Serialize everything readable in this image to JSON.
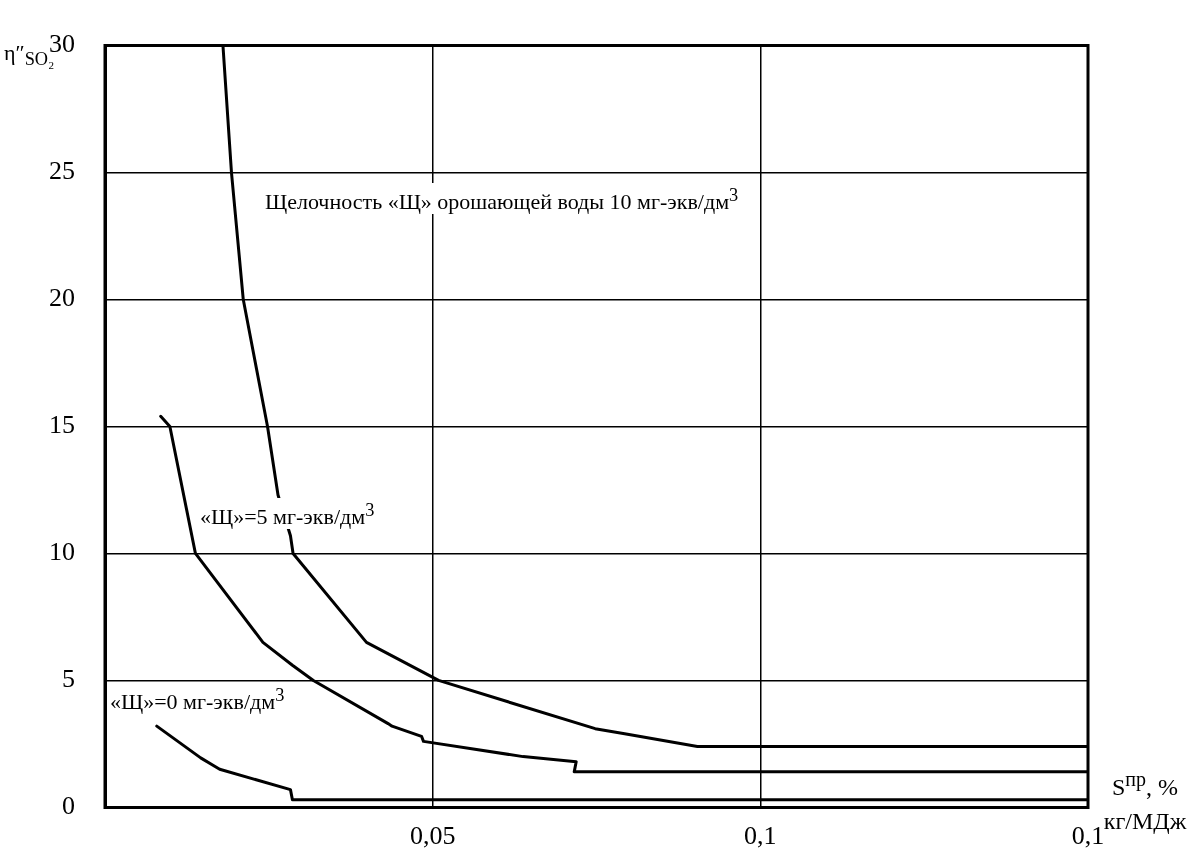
{
  "chart_data": {
    "type": "line",
    "ylabel": "η″$_{SO₂}$",
    "xlabel": "S$^{пр}$, % кг/МДж",
    "xlim": [
      0,
      0.15
    ],
    "xticks": [
      {
        "value": 0.05,
        "label": "0,05"
      },
      {
        "value": 0.1,
        "label": "0,1"
      },
      {
        "value": 0.15,
        "label": "0,1"
      }
    ],
    "ylim": [
      0,
      30
    ],
    "yticks": [
      0,
      5,
      10,
      15,
      20,
      25,
      30
    ],
    "grid": true,
    "legend": false,
    "marker": "none",
    "line_style": "solid",
    "annotations": [
      "Щелочность «Щ» орошающей воды 10 мг-экв/дм$^{3}$",
      "«Щ»=5 мг-экв/дм$^{3}$",
      "«Щ»=0 мг-экв/дм$^{3}$"
    ],
    "series": [
      {
        "color": "#000000",
        "x": [
          0.018,
          0.0193,
          0.0211,
          0.0248,
          0.0264,
          0.0283,
          0.0287,
          0.0399,
          0.0509,
          0.0748,
          0.0793,
          0.0904,
          0.1,
          0.15
        ],
        "values": [
          30,
          25,
          20,
          15,
          12.3,
          10.7,
          10,
          6.5,
          5,
          3.1,
          2.9,
          2.4,
          2.4,
          2.4
        ]
      },
      {
        "color": "#000000",
        "x": [
          0.0085,
          0.0099,
          0.0138,
          0.0241,
          0.0286,
          0.0318,
          0.0432,
          0.0438,
          0.0483,
          0.0486,
          0.0638,
          0.0719,
          0.0716,
          0.15
        ],
        "values": [
          15.4,
          15,
          10,
          6.5,
          5.6,
          5,
          3.3,
          3.2,
          2.8,
          2.6,
          2,
          1.8,
          1.4,
          1.4
        ]
      },
      {
        "color": "#000000",
        "x": [
          0.0079,
          0.0146,
          0.0175,
          0.0283,
          0.0286,
          0.15
        ],
        "values": [
          3.2,
          1.95,
          1.5,
          0.7,
          0.3,
          0.3
        ]
      }
    ]
  }
}
